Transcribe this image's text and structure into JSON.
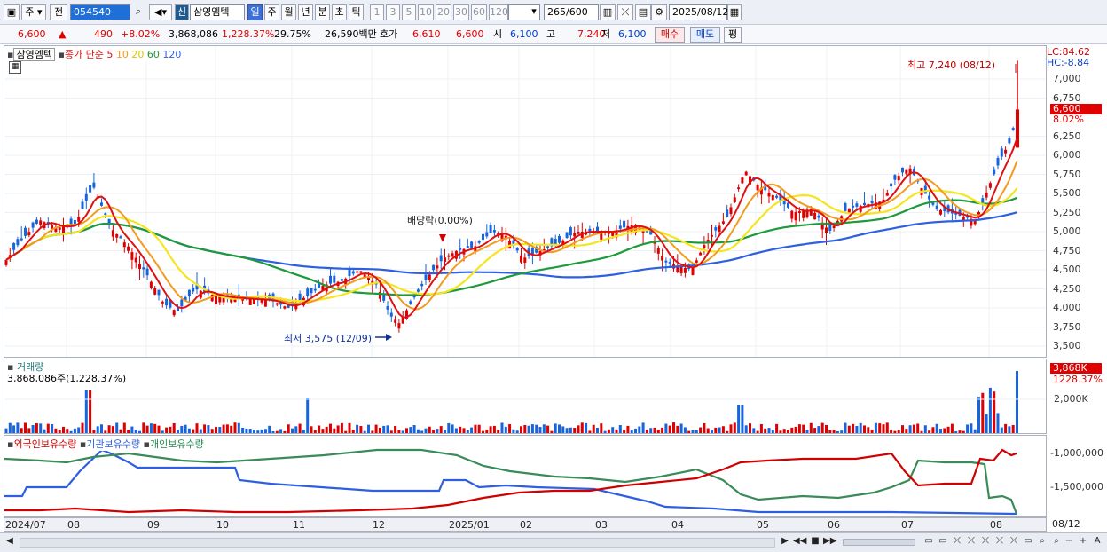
{
  "toolbar": {
    "type_label": "주",
    "prev_label": "전",
    "code": "054540",
    "market_badge": "신",
    "stock_name": "삼영엠텍",
    "periods": [
      "일",
      "주",
      "월",
      "년",
      "분",
      "초",
      "틱"
    ],
    "intervals": [
      "1",
      "3",
      "5",
      "10",
      "20",
      "30",
      "60",
      "120"
    ],
    "count": "265",
    "count_max": "/600",
    "date": "2025/08/12"
  },
  "quote": {
    "price": "6,600",
    "change": "490",
    "change_pct": "+8.02%",
    "volume": "3,868,086",
    "volume_pct": "1,228.37%",
    "turnover": "29.75%",
    "amount": "26,590백만",
    "ask_label": "호가",
    "ask1": "6,610",
    "ask2": "6,600",
    "open_label": "시",
    "open": "6,100",
    "high_label": "고",
    "high": "7,240",
    "low_label": "저",
    "low": "6,100",
    "buy_label": "매수",
    "sell_label": "매도",
    "eval_label": "평"
  },
  "price_panel": {
    "name": "삼영엠텍",
    "legend_main": "종가 단순 5",
    "ma": [
      "10",
      "20",
      "60",
      "120"
    ],
    "lc": "LC:84.62",
    "hc": "HC:-8.84",
    "high_note": "최고 7,240 (08/12)",
    "low_note": "최저 3,575 (12/09)",
    "dividend_note": "배당락(0.00%)",
    "current_price": "6,600",
    "current_pct": "8.02%",
    "ticks": [
      "7,000",
      "6,750",
      "6,250",
      "6,000",
      "5,750",
      "5,500",
      "5,250",
      "5,000",
      "4,750",
      "4,500",
      "4,250",
      "4,000",
      "3,750",
      "3,500"
    ]
  },
  "volume_panel": {
    "title": "거래량",
    "value": "3,868,086주(1,228.37%)",
    "box": "3,868K",
    "box_pct": "1228.37%",
    "tick": "2,000K"
  },
  "holdings_panel": {
    "labels": [
      "외국인보유수량",
      "기관보유수량",
      "개인보유수량"
    ],
    "ticks": [
      "-1,000,000",
      "-1,500,000"
    ]
  },
  "xaxis": {
    "labels": [
      "2024/07",
      "08",
      "09",
      "10",
      "11",
      "12",
      "2025/01",
      "02",
      "03",
      "04",
      "05",
      "06",
      "07",
      "08"
    ],
    "last": "08/12"
  },
  "colors": {
    "up": "#e00000",
    "down": "#1565e0",
    "ma5": "#e01010",
    "ma10": "#f29b1e",
    "ma20": "#f5e51e",
    "ma60": "#1f9a3a",
    "ma120": "#2e5fe0"
  }
}
